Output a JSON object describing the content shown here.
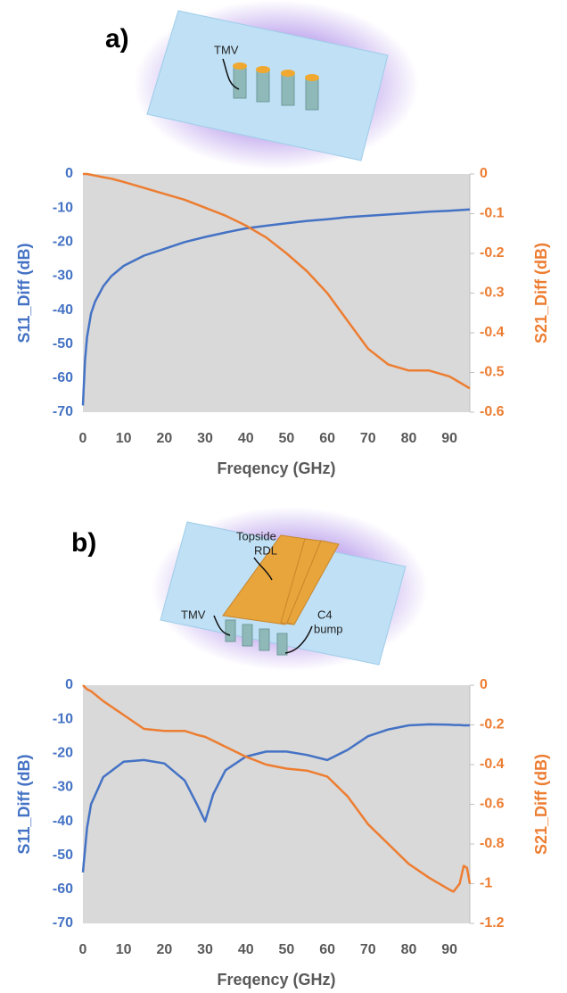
{
  "chart_data": [
    {
      "type": "line",
      "label": "a)",
      "annotations": [
        [
          "TMV"
        ]
      ],
      "xlabel": "Freqency (GHz)",
      "ylabel": "S11_Diff (dB)",
      "y2label": "S21_Diff (dB)",
      "x": [
        0,
        0.5,
        1,
        2,
        3,
        5,
        7,
        10,
        15,
        20,
        25,
        30,
        35,
        40,
        45,
        50,
        55,
        60,
        65,
        70,
        75,
        80,
        85,
        90,
        95
      ],
      "xlim": [
        0,
        95
      ],
      "xticks": [
        0,
        10,
        20,
        30,
        40,
        50,
        60,
        70,
        80,
        90
      ],
      "ylim": [
        -70,
        0
      ],
      "yticks": [
        0,
        -10,
        -20,
        -30,
        -40,
        -50,
        -60,
        -70
      ],
      "y2lim": [
        -0.6,
        0
      ],
      "y2ticks": [
        0,
        -0.1,
        -0.2,
        -0.3,
        -0.4,
        -0.5,
        -0.6
      ],
      "series": [
        {
          "color": "#4472c4",
          "axis": "y",
          "values": [
            -68,
            -55,
            -48,
            -41,
            -37.5,
            -33,
            -30,
            -27,
            -24,
            -22,
            -20,
            -18.5,
            -17.2,
            -16,
            -15.2,
            -14.5,
            -13.8,
            -13.3,
            -12.7,
            -12.3,
            -11.9,
            -11.5,
            -11.1,
            -10.8,
            -10.4
          ]
        },
        {
          "color": "#ed7d31",
          "axis": "y2",
          "values": [
            0,
            0,
            0,
            -0.002,
            -0.004,
            -0.008,
            -0.012,
            -0.02,
            -0.035,
            -0.05,
            -0.065,
            -0.085,
            -0.105,
            -0.13,
            -0.16,
            -0.2,
            -0.245,
            -0.3,
            -0.37,
            -0.44,
            -0.48,
            -0.495,
            -0.495,
            -0.51,
            -0.54
          ]
        }
      ]
    },
    {
      "type": "line",
      "label": "b)",
      "annotations": [
        [
          "Topside",
          "RDL"
        ],
        [
          "TMV"
        ],
        [
          "C4",
          "bump"
        ]
      ],
      "xlabel": "Freqency (GHz)",
      "ylabel": "S11_Diff (dB)",
      "y2label": "S21_Diff (dB)",
      "x": [
        0,
        1,
        2,
        5,
        10,
        15,
        20,
        25,
        28,
        30,
        32,
        35,
        40,
        45,
        50,
        55,
        60,
        65,
        70,
        75,
        80,
        85,
        90,
        91,
        92.5,
        93.5,
        94.3,
        95
      ],
      "xlim": [
        0,
        95
      ],
      "xticks": [
        0,
        10,
        20,
        30,
        40,
        50,
        60,
        70,
        80,
        90
      ],
      "ylim": [
        -70,
        0
      ],
      "yticks": [
        0,
        -10,
        -20,
        -30,
        -40,
        -50,
        -60,
        -70
      ],
      "y2lim": [
        -1.2,
        0
      ],
      "y2ticks": [
        0,
        -0.2,
        -0.4,
        -0.6,
        -0.8,
        -1,
        -1.2
      ],
      "series": [
        {
          "color": "#4472c4",
          "axis": "y",
          "values": [
            -55,
            -42,
            -35,
            -27,
            -22.5,
            -22,
            -23,
            -28,
            -35,
            -40,
            -32,
            -25,
            -21,
            -19.5,
            -19.5,
            -20.5,
            -22,
            -19,
            -15,
            -13,
            -11.8,
            -11.5,
            -11.6,
            -11.7,
            -11.7,
            -11.8,
            -11.8,
            -11.8
          ]
        },
        {
          "color": "#ed7d31",
          "axis": "y2",
          "values": [
            0,
            -0.02,
            -0.03,
            -0.08,
            -0.15,
            -0.22,
            -0.23,
            -0.23,
            -0.25,
            -0.26,
            -0.28,
            -0.31,
            -0.36,
            -0.4,
            -0.42,
            -0.43,
            -0.46,
            -0.56,
            -0.7,
            -0.8,
            -0.9,
            -0.97,
            -1.03,
            -1.04,
            -1,
            -0.91,
            -0.92,
            -1
          ]
        }
      ]
    }
  ]
}
